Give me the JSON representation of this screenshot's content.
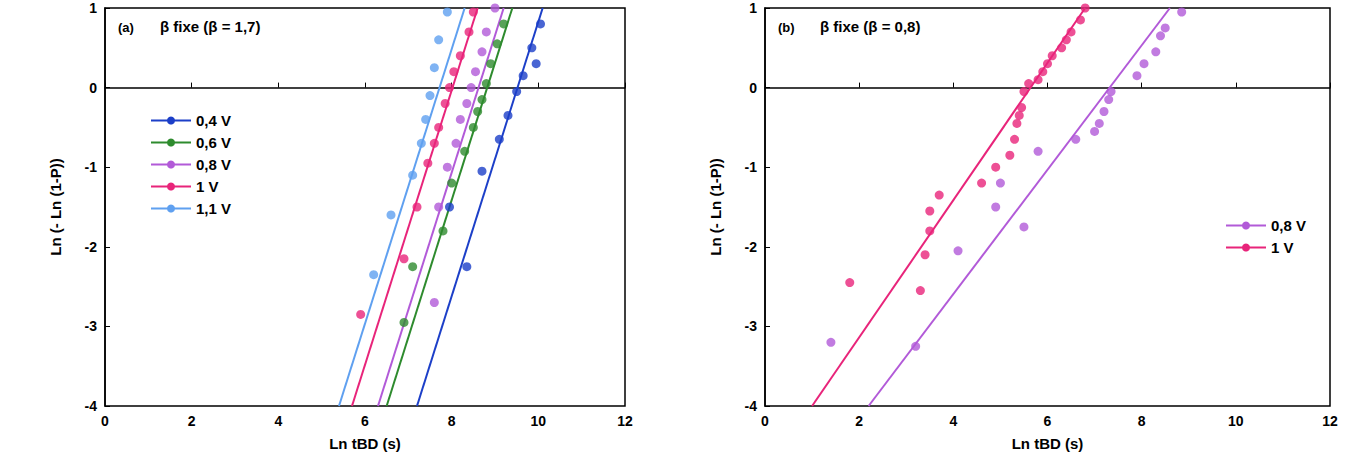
{
  "chart_data": [
    {
      "type": "scatter",
      "title": "(a)",
      "annotations": [
        "β fixe (β = 1,7)"
      ],
      "x_label": "Ln tBD (s)",
      "y_label": "Ln (- Ln (1-P))",
      "xlim": [
        0,
        12
      ],
      "xticks": [
        0,
        2,
        4,
        6,
        8,
        10,
        12
      ],
      "ylim": [
        -4,
        1
      ],
      "yticks": [
        -4,
        -3,
        -2,
        -1,
        0,
        1
      ],
      "legend": "center left",
      "grid": false,
      "marker": "circle",
      "series": [
        {
          "name": "0,4 V",
          "color": "#1c3fc8",
          "values": [
            [
              8.35,
              -2.25
            ],
            [
              7.95,
              -1.5
            ],
            [
              8.7,
              -1.05
            ],
            [
              9.1,
              -0.65
            ],
            [
              9.3,
              -0.35
            ],
            [
              9.5,
              -0.05
            ],
            [
              9.65,
              0.15
            ],
            [
              9.95,
              0.3
            ],
            [
              9.85,
              0.5
            ],
            [
              10.05,
              0.8
            ]
          ],
          "fit": [
            [
              7.2,
              -4
            ],
            [
              10.1,
              1
            ]
          ]
        },
        {
          "name": "0,6 V",
          "color": "#2e8b2e",
          "values": [
            [
              6.9,
              -2.95
            ],
            [
              7.1,
              -2.25
            ],
            [
              7.8,
              -1.8
            ],
            [
              8.0,
              -1.2
            ],
            [
              8.3,
              -0.8
            ],
            [
              8.5,
              -0.5
            ],
            [
              8.6,
              -0.3
            ],
            [
              8.7,
              -0.15
            ],
            [
              8.8,
              0.05
            ],
            [
              8.9,
              0.3
            ],
            [
              9.05,
              0.55
            ],
            [
              9.2,
              0.8
            ]
          ],
          "fit": [
            [
              6.5,
              -4
            ],
            [
              9.4,
              1
            ]
          ]
        },
        {
          "name": "0,8 V",
          "color": "#b25ad8",
          "values": [
            [
              7.6,
              -2.7
            ],
            [
              7.7,
              -1.5
            ],
            [
              7.9,
              -1.0
            ],
            [
              8.1,
              -0.7
            ],
            [
              8.2,
              -0.4
            ],
            [
              8.35,
              -0.2
            ],
            [
              8.45,
              0.0
            ],
            [
              8.55,
              0.2
            ],
            [
              8.7,
              0.45
            ],
            [
              8.8,
              0.7
            ],
            [
              9.0,
              1.0
            ]
          ],
          "fit": [
            [
              6.3,
              -4
            ],
            [
              9.2,
              1
            ]
          ]
        },
        {
          "name": "1 V",
          "color": "#e8247a",
          "values": [
            [
              5.9,
              -2.85
            ],
            [
              6.9,
              -2.15
            ],
            [
              7.2,
              -1.5
            ],
            [
              7.45,
              -0.95
            ],
            [
              7.6,
              -0.7
            ],
            [
              7.7,
              -0.5
            ],
            [
              7.85,
              -0.2
            ],
            [
              7.95,
              0.0
            ],
            [
              8.05,
              0.2
            ],
            [
              8.2,
              0.4
            ],
            [
              8.4,
              0.7
            ],
            [
              8.5,
              0.95
            ]
          ],
          "fit": [
            [
              5.7,
              -4
            ],
            [
              8.6,
              1
            ]
          ]
        },
        {
          "name": "1,1 V",
          "color": "#5fa0f0",
          "values": [
            [
              6.2,
              -2.35
            ],
            [
              6.6,
              -1.6
            ],
            [
              7.1,
              -1.1
            ],
            [
              7.3,
              -0.7
            ],
            [
              7.4,
              -0.4
            ],
            [
              7.5,
              -0.1
            ],
            [
              7.6,
              0.25
            ],
            [
              7.7,
              0.6
            ],
            [
              7.9,
              0.95
            ]
          ],
          "fit": [
            [
              5.4,
              -4
            ],
            [
              8.3,
              1
            ]
          ]
        }
      ]
    },
    {
      "type": "scatter",
      "title": "(b)",
      "annotations": [
        "β fixe (β = 0,8)"
      ],
      "x_label": "Ln tBD (s)",
      "y_label": "Ln (- Ln (1-P))",
      "xlim": [
        0,
        12
      ],
      "xticks": [
        0,
        2,
        4,
        6,
        8,
        10,
        12
      ],
      "ylim": [
        -4,
        1
      ],
      "yticks": [
        -4,
        -3,
        -2,
        -1,
        0,
        1
      ],
      "legend": "lower right",
      "grid": false,
      "marker": "circle",
      "series": [
        {
          "name": "0,8 V",
          "color": "#b25ad8",
          "values": [
            [
              1.4,
              -3.2
            ],
            [
              3.2,
              -3.25
            ],
            [
              4.1,
              -2.05
            ],
            [
              4.9,
              -1.5
            ],
            [
              5.0,
              -1.2
            ],
            [
              5.5,
              -1.75
            ],
            [
              5.8,
              -0.8
            ],
            [
              6.6,
              -0.65
            ],
            [
              7.0,
              -0.55
            ],
            [
              7.1,
              -0.45
            ],
            [
              7.2,
              -0.3
            ],
            [
              7.3,
              -0.15
            ],
            [
              7.35,
              -0.05
            ],
            [
              7.9,
              0.15
            ],
            [
              8.05,
              0.3
            ],
            [
              8.3,
              0.45
            ],
            [
              8.4,
              0.65
            ],
            [
              8.5,
              0.75
            ],
            [
              8.85,
              0.95
            ]
          ],
          "fit": [
            [
              2.2,
              -4
            ],
            [
              8.6,
              1
            ]
          ]
        },
        {
          "name": "1 V",
          "color": "#e8247a",
          "values": [
            [
              1.8,
              -2.45
            ],
            [
              3.3,
              -2.55
            ],
            [
              3.4,
              -2.1
            ],
            [
              3.5,
              -1.8
            ],
            [
              3.5,
              -1.55
            ],
            [
              3.7,
              -1.35
            ],
            [
              4.6,
              -1.2
            ],
            [
              4.9,
              -1.0
            ],
            [
              5.2,
              -0.85
            ],
            [
              5.3,
              -0.65
            ],
            [
              5.35,
              -0.45
            ],
            [
              5.4,
              -0.35
            ],
            [
              5.45,
              -0.25
            ],
            [
              5.5,
              -0.05
            ],
            [
              5.6,
              0.05
            ],
            [
              5.8,
              0.1
            ],
            [
              5.9,
              0.2
            ],
            [
              6.0,
              0.3
            ],
            [
              6.1,
              0.4
            ],
            [
              6.3,
              0.5
            ],
            [
              6.4,
              0.6
            ],
            [
              6.5,
              0.7
            ],
            [
              6.7,
              0.85
            ],
            [
              6.8,
              1.0
            ]
          ],
          "fit": [
            [
              1.0,
              -4
            ],
            [
              6.8,
              1
            ]
          ]
        }
      ]
    }
  ]
}
